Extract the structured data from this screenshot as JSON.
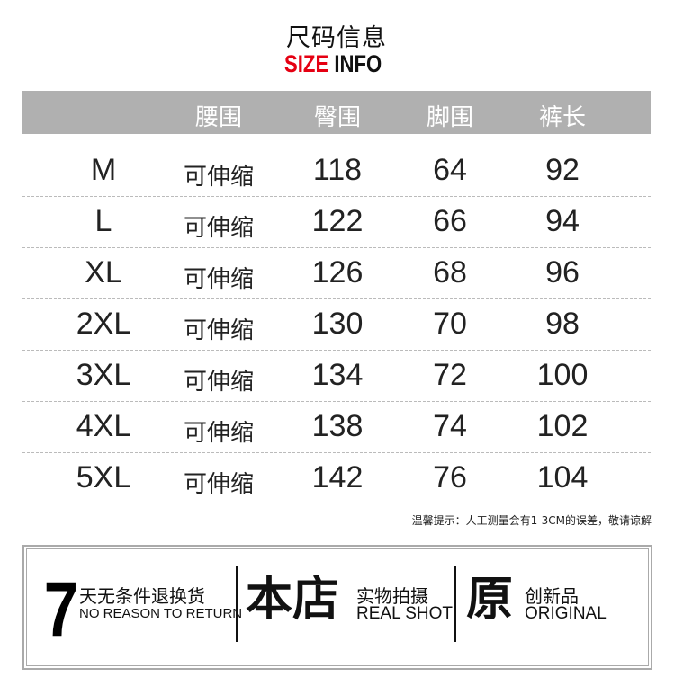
{
  "title": "尺码信息",
  "subtitle": {
    "red": "SIZE",
    "black": "INFO"
  },
  "colors": {
    "accent": "#e50012",
    "header_bg": "#b0b0b0"
  },
  "table": {
    "headers": [
      "",
      "腰围",
      "臀围",
      "脚围",
      "裤长"
    ],
    "rows": [
      [
        "M",
        "可伸缩",
        "118",
        "64",
        "92"
      ],
      [
        "L",
        "可伸缩",
        "122",
        "66",
        "94"
      ],
      [
        "XL",
        "可伸缩",
        "126",
        "68",
        "96"
      ],
      [
        "2XL",
        "可伸缩",
        "130",
        "70",
        "98"
      ],
      [
        "3XL",
        "可伸缩",
        "134",
        "72",
        "100"
      ],
      [
        "4XL",
        "可伸缩",
        "138",
        "74",
        "102"
      ],
      [
        "5XL",
        "可伸缩",
        "142",
        "76",
        "104"
      ]
    ]
  },
  "note": "温馨提示：人工测量会有1-3CM的误差，敬请谅解",
  "badges": [
    {
      "big": "7",
      "cn": "天无条件退换货",
      "en": "NO REASON TO RETURN"
    },
    {
      "big": "本店",
      "cn": "实物拍摄",
      "en": "REAL SHOT"
    },
    {
      "big": "原",
      "cn": "创新品",
      "en": "ORIGINAL"
    }
  ]
}
